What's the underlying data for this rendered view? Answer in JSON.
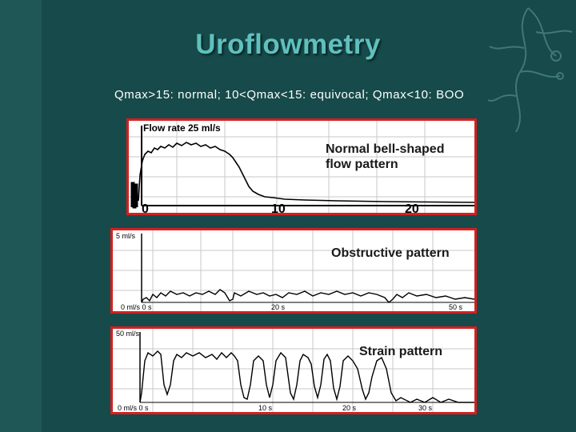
{
  "slide": {
    "title": "Uroflowmetry",
    "subtitle": "Qmax>15: normal; 10<Qmax<15: equivocal; Qmax<10: BOO"
  },
  "theme": {
    "background": "#174a4a",
    "title_color": "#5fc0bf",
    "panel_border": "#d42020",
    "trace_color": "#000000"
  },
  "panels": [
    {
      "label_lines": [
        "Normal bell-shaped",
        "flow pattern"
      ],
      "axis_label": "Flow rate 25 ml/s",
      "ticks": [
        "0",
        "10",
        "20"
      ]
    },
    {
      "label_lines": [
        "Obstructive pattern"
      ],
      "axis_label": "5 ml/s",
      "ticks": [
        "0 ml/s 0 s",
        "20 s",
        "50 s"
      ]
    },
    {
      "label_lines": [
        "Strain pattern"
      ],
      "axis_label": "50 ml/s",
      "ticks": [
        "0 ml/s 0 s",
        "10 s",
        "20 s",
        "30 s"
      ]
    }
  ]
}
